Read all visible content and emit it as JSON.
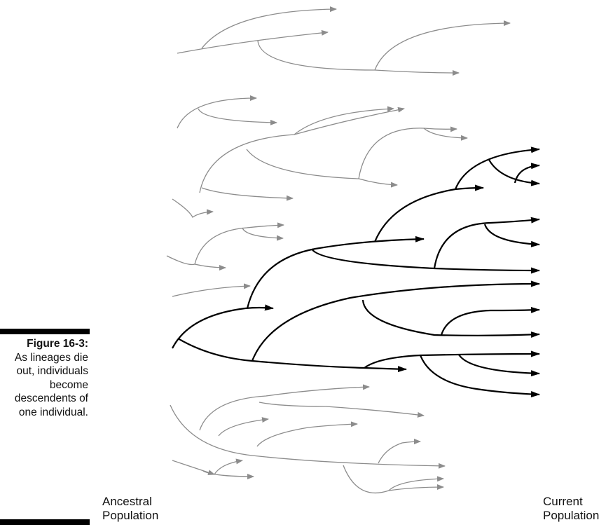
{
  "caption": {
    "figure_label": "Figure 16-3:",
    "text": "As lineages die out, individuals become descendents of one individual."
  },
  "labels": {
    "ancestral": "Ancestral Population",
    "current": "Current Population"
  },
  "colors": {
    "extinct_lineage": "#8c8c8c",
    "surviving_lineage": "#000000"
  }
}
